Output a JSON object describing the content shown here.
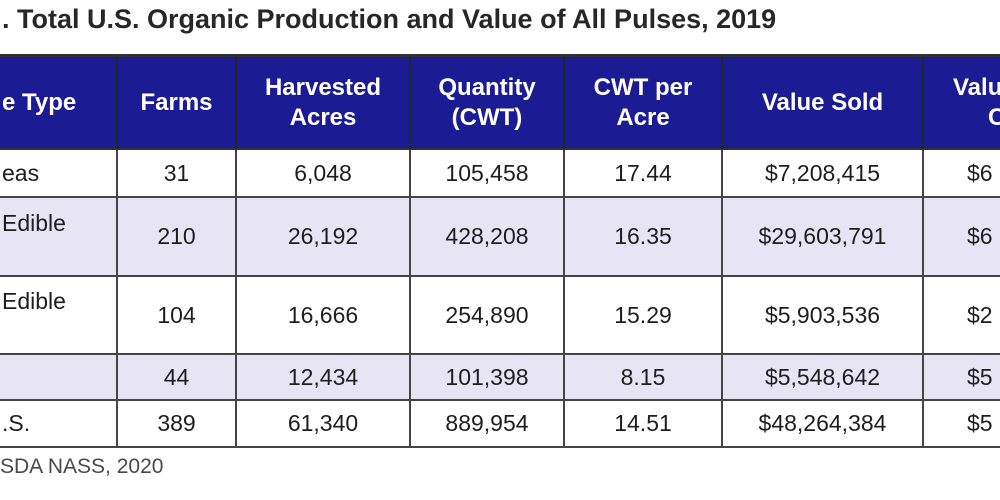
{
  "colors": {
    "header_bg": "#1b1b94",
    "header_text": "#ffffff",
    "alt_row_bg": "#e7e4f4",
    "border": "#454545",
    "title_text": "#272727"
  },
  "chart_data": {
    "type": "table",
    "title": ". Total U.S. Organic Production and Value of All Pulses, 2019",
    "source": "SDA NASS, 2020",
    "columns": [
      {
        "lines": [
          "e Type",
          ""
        ]
      },
      {
        "lines": [
          "Farms",
          ""
        ]
      },
      {
        "lines": [
          "Harvested",
          "Acres"
        ]
      },
      {
        "lines": [
          "Quantity",
          "(CWT)"
        ]
      },
      {
        "lines": [
          "CWT per",
          "Acre"
        ]
      },
      {
        "lines": [
          "Value Sold",
          ""
        ]
      },
      {
        "lines": [
          "Valu",
          "C"
        ]
      }
    ],
    "rows": [
      {
        "type": [
          "eas",
          ""
        ],
        "farms": "31",
        "harvested_acres": "6,048",
        "quantity_cwt": "105,458",
        "cwt_per_acre": "17.44",
        "value_sold": "$7,208,415",
        "value_per_cwt": "$6"
      },
      {
        "type": [
          "Edible",
          " "
        ],
        "farms": "210",
        "harvested_acres": "26,192",
        "quantity_cwt": "428,208",
        "cwt_per_acre": "16.35",
        "value_sold": "$29,603,791",
        "value_per_cwt": "$6"
      },
      {
        "type": [
          "Edible",
          " "
        ],
        "farms": "104",
        "harvested_acres": "16,666",
        "quantity_cwt": "254,890",
        "cwt_per_acre": "15.29",
        "value_sold": "$5,903,536",
        "value_per_cwt": "$2"
      },
      {
        "type": [
          "",
          ""
        ],
        "farms": "44",
        "harvested_acres": "12,434",
        "quantity_cwt": "101,398",
        "cwt_per_acre": "8.15",
        "value_sold": "$5,548,642",
        "value_per_cwt": "$5"
      },
      {
        "type": [
          ".S.",
          ""
        ],
        "farms": "389",
        "harvested_acres": "61,340",
        "quantity_cwt": "889,954",
        "cwt_per_acre": "14.51",
        "value_sold": "$48,264,384",
        "value_per_cwt": "$5"
      }
    ]
  }
}
